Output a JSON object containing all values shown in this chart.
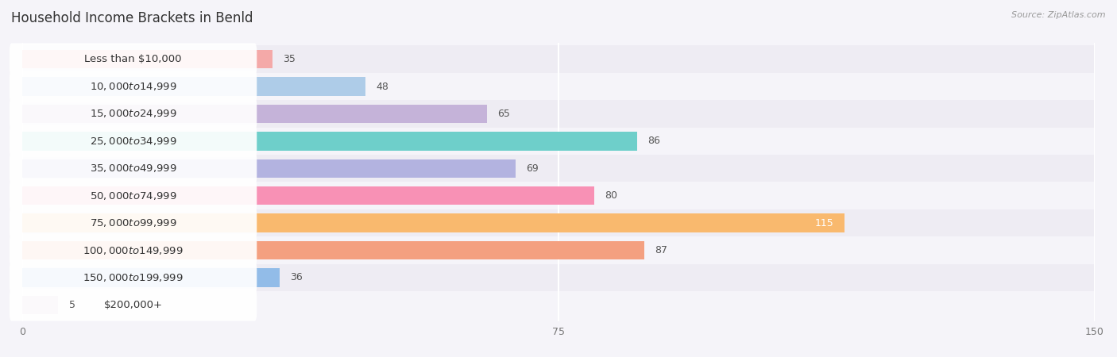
{
  "title": "Household Income Brackets in Benld",
  "source": "Source: ZipAtlas.com",
  "categories": [
    "Less than $10,000",
    "$10,000 to $14,999",
    "$15,000 to $24,999",
    "$25,000 to $34,999",
    "$35,000 to $49,999",
    "$50,000 to $74,999",
    "$75,000 to $99,999",
    "$100,000 to $149,999",
    "$150,000 to $199,999",
    "$200,000+"
  ],
  "values": [
    35,
    48,
    65,
    86,
    69,
    80,
    115,
    87,
    36,
    5
  ],
  "colors": [
    "#f4a9a8",
    "#aecce8",
    "#c5b3d9",
    "#6ecfca",
    "#b3b3e0",
    "#f891b5",
    "#f9b96e",
    "#f4a080",
    "#92bce8",
    "#d4b8d8"
  ],
  "xlim": [
    0,
    150
  ],
  "xticks": [
    0,
    75,
    150
  ],
  "bar_height": 0.68,
  "bg_colors": [
    "#eeecf3",
    "#f5f4f9"
  ],
  "title_fontsize": 12,
  "label_fontsize": 9.5,
  "tick_fontsize": 9,
  "source_fontsize": 8,
  "value_label_fontsize": 9
}
